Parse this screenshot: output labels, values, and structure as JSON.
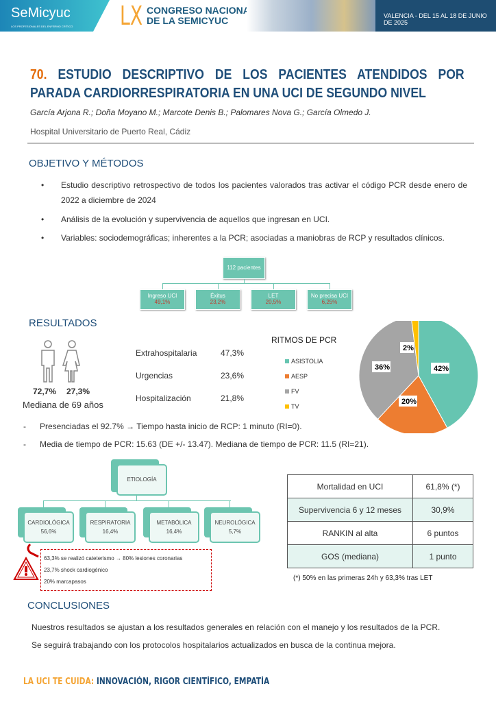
{
  "header": {
    "logo": "SeMicyuc",
    "logo_sub": "LOS PROFESIONALES DEL ENFERMO CRÍTICO",
    "roman": "LX",
    "congress_line1": "CONGRESO NACIONAL",
    "congress_line2": "DE LA SEMICYUC",
    "dates": "VALENCIA - DEL 15 AL 18 DE JUNIO DE 2025"
  },
  "title": {
    "number": "70.",
    "text": "ESTUDIO DESCRIPTIVO DE LOS PACIENTES ATENDIDOS POR PARADA CARDIORRESPIRATORIA EN UNA UCI DE SEGUNDO NIVEL"
  },
  "authors": "García Arjona R.; Doña Moyano M.; Marcote Denis B.; Palomares Nova G.; García Olmedo J.",
  "hospital": "Hospital Universitario de Puerto Real, Cádiz",
  "objetivo": {
    "heading": "OBJETIVO Y MÉTODOS",
    "bullets": [
      "Estudio descriptivo retrospectivo de todos los pacientes valorados tras activar el código PCR desde enero de 2022 a diciembre de 2024",
      "Análisis de la evolución y supervivencia de aquellos que ingresan en UCI.",
      "Variables: sociodemográficas; inherentes a la PCR; asociadas a maniobras de RCP y resultados clínicos."
    ]
  },
  "tree": {
    "root": "112 pacientes",
    "children": [
      {
        "label": "Ingreso UCI",
        "value": "49,1%"
      },
      {
        "label": "Éxitus",
        "value": "23,2%"
      },
      {
        "label": "LET",
        "value": "20,5%"
      },
      {
        "label": "No precisa UCI",
        "value": "6,25%"
      }
    ]
  },
  "resultados": {
    "heading": "RESULTADOS",
    "male": "72,7%",
    "female": "27,3%",
    "median_age": "Mediana de 69 años",
    "origin": [
      {
        "label": "Extrahospitalaria",
        "value": "47,3%"
      },
      {
        "label": "Urgencias",
        "value": "23,6%"
      },
      {
        "label": "Hospitalización",
        "value": "21,8%"
      }
    ],
    "dash1_pre": "Presenciadas el 92.7%",
    "dash1_arrow": "→",
    "dash1_post": " Tiempo hasta inicio de RCP: 1 minuto (RI=0).",
    "dash2": "Media de tiempo de PCR: 15.63 (DE +/- 13.47). Mediana de tiempo de PCR: 11.5 (RI=21)."
  },
  "chart_data": {
    "type": "pie",
    "title": "RITMOS DE PCR",
    "legend_position": "left",
    "categories": [
      "ASISTOLIA",
      "AESP",
      "FV",
      "TV"
    ],
    "values": [
      42,
      20,
      36,
      2
    ],
    "labels": [
      "42%",
      "20%",
      "36%",
      "2%"
    ],
    "colors": [
      "#66c5b1",
      "#ed7d31",
      "#a5a5a5",
      "#ffc000"
    ]
  },
  "etiologia": {
    "root": "ETIOLOGÍA",
    "children": [
      {
        "label": "CARDIOLÓGICA",
        "value": "56,6%"
      },
      {
        "label": "RESPIRATORIA",
        "value": "16,4%"
      },
      {
        "label": "METABÓLICA",
        "value": "16,4%"
      },
      {
        "label": "NEUROLÓGICA",
        "value": "5,7%"
      }
    ],
    "notes": [
      "63,3% se realizó cateterismo → 80% lesiones coronarias",
      "23,7% shock cardiogénico",
      "20% marcapasos"
    ]
  },
  "outcomes": {
    "rows": [
      {
        "label": "Mortalidad en UCI",
        "value": "61,8% (*)"
      },
      {
        "label": "Supervivencia 6 y 12 meses",
        "value": "30,9%"
      },
      {
        "label": "RANKIN al alta",
        "value": "6 puntos"
      },
      {
        "label": "GOS (mediana)",
        "value": "1 punto"
      }
    ],
    "footnote": "(*) 50% en las primeras 24h y 63,3% tras LET"
  },
  "conclusiones": {
    "heading": "CONCLUSIONES",
    "lines": [
      "Nuestros resultados se ajustan a los resultados generales en relación con el manejo y los resultados de la PCR.",
      "Se seguirá trabajando con los protocolos hospitalarios actualizados en busca de la continua mejora."
    ]
  },
  "footer": {
    "lead": "LA UCI TE CUIDA:",
    "rest": " INNOVACIÓN, RIGOR CIENTÍFICO, EMPATÍA"
  }
}
